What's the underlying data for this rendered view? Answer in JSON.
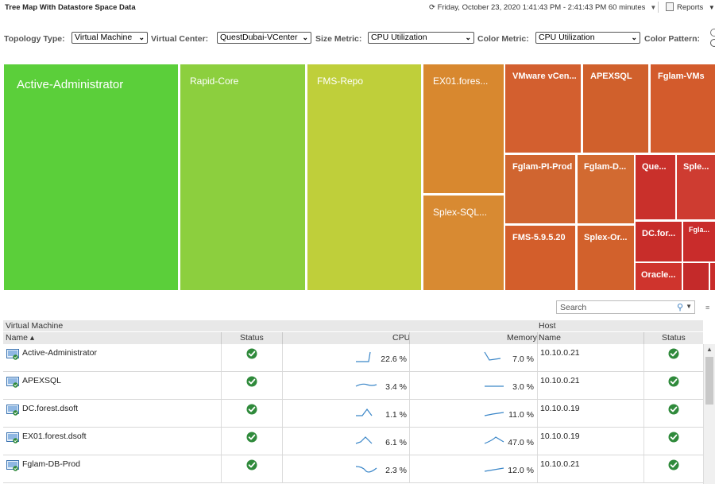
{
  "header": {
    "title": "Tree Map With Datastore Space Data",
    "time_icon": "⟳",
    "time_range": "Friday, October 23, 2020 1:41:43 PM - 2:41:43 PM 60 minutes",
    "reports_label": "Reports"
  },
  "toolbar": {
    "topology_label": "Topology Type:",
    "topology_value": "Virtual Machine",
    "vc_label": "Virtual Center:",
    "vc_value": "QuestDubai-VCenter",
    "size_label": "Size Metric:",
    "size_value": "CPU Utilization",
    "color_label": "Color Metric:",
    "color_value": "CPU Utilization",
    "pattern_label": "Color Pattern:"
  },
  "treemap": {
    "tiles": [
      {
        "label": "Active-Administrator",
        "color": "#5bcf3a"
      },
      {
        "label": "Rapid-Core",
        "color": "#8ccf3e"
      },
      {
        "label": "FMS-Repo",
        "color": "#bfcf3a"
      },
      {
        "label": "EX01.fores...",
        "color": "#d8882f"
      },
      {
        "label": "Splex-SQL...",
        "color": "#d88a32"
      },
      {
        "label": "VMware vCen...",
        "color": "#d35f2f"
      },
      {
        "label": "APEXSQL",
        "color": "#d0602c"
      },
      {
        "label": "Fglam-VMs",
        "color": "#d35b2c"
      },
      {
        "label": "Fglam-PI-Prod",
        "color": "#d06530"
      },
      {
        "label": "Fglam-D...",
        "color": "#d26a31"
      },
      {
        "label": "Que...",
        "color": "#c9302b"
      },
      {
        "label": "Sple...",
        "color": "#ce3c31"
      },
      {
        "label": "FMS-5.9.5.20",
        "color": "#d35e2b"
      },
      {
        "label": "Splex-Or...",
        "color": "#d2612c"
      },
      {
        "label": "DC.for...",
        "color": "#c82d2a"
      },
      {
        "label": "Fgla...",
        "color": "#c92c2b"
      },
      {
        "label": "Oracle...",
        "color": "#cf342d"
      },
      {
        "label": "",
        "color": "#c42a2a"
      },
      {
        "label": "",
        "color": "#c92c2a"
      }
    ]
  },
  "grid": {
    "search_placeholder": "Search",
    "group_vm": "Virtual Machine",
    "group_host": "Host",
    "columns": {
      "name": "Name ▴",
      "status": "Status",
      "cpu": "CPU",
      "memory": "Memory",
      "host_name": "Name",
      "host_status": "Status"
    },
    "rows": [
      {
        "name": "Active-Administrator",
        "cpu": "22.6 %",
        "memory": "7.0 %",
        "host": "10.10.0.21"
      },
      {
        "name": "APEXSQL",
        "cpu": "3.4 %",
        "memory": "3.0 %",
        "host": "10.10.0.21"
      },
      {
        "name": "DC.forest.dsoft",
        "cpu": "1.1 %",
        "memory": "11.0 %",
        "host": "10.10.0.19"
      },
      {
        "name": "EX01.forest.dsoft",
        "cpu": "6.1 %",
        "memory": "47.0 %",
        "host": "10.10.0.19"
      },
      {
        "name": "Fglam-DB-Prod",
        "cpu": "2.3 %",
        "memory": "12.0 %",
        "host": "10.10.0.21"
      }
    ]
  }
}
